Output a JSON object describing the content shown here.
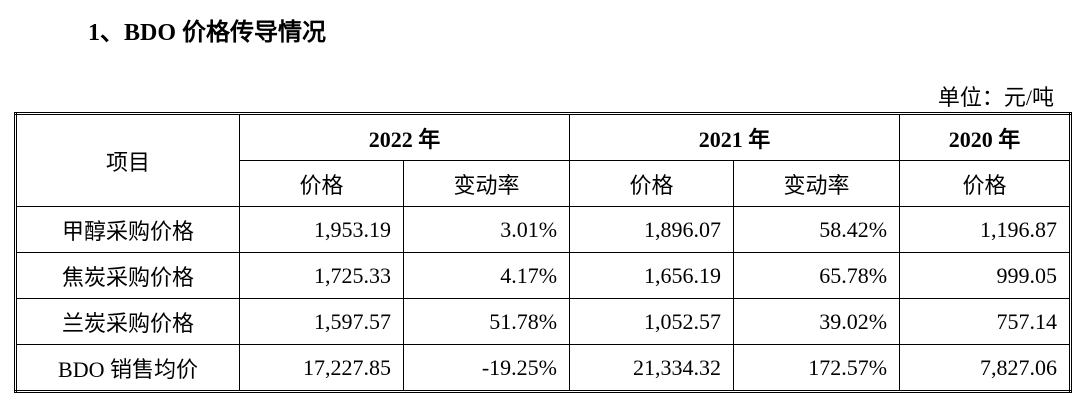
{
  "title": "1、BDO 价格传导情况",
  "unit": "单位：元/吨",
  "table": {
    "header": [
      "项目",
      "2022 年",
      "2021 年",
      "2020 年"
    ],
    "subheader": [
      "价格",
      "变动率",
      "价格",
      "变动率",
      "价格"
    ],
    "rows": [
      [
        "甲醇采购价格",
        "1,953.19",
        "3.01%",
        "1,896.07",
        "58.42%",
        "1,196.87"
      ],
      [
        "焦炭采购价格",
        "1,725.33",
        "4.17%",
        "1,656.19",
        "65.78%",
        "999.05"
      ],
      [
        "兰炭采购价格",
        "1,597.57",
        "51.78%",
        "1,052.57",
        "39.02%",
        "757.14"
      ],
      [
        "BDO 销售均价",
        "17,227.85",
        "-19.25%",
        "21,334.32",
        "172.57%",
        "7,827.06"
      ]
    ]
  }
}
